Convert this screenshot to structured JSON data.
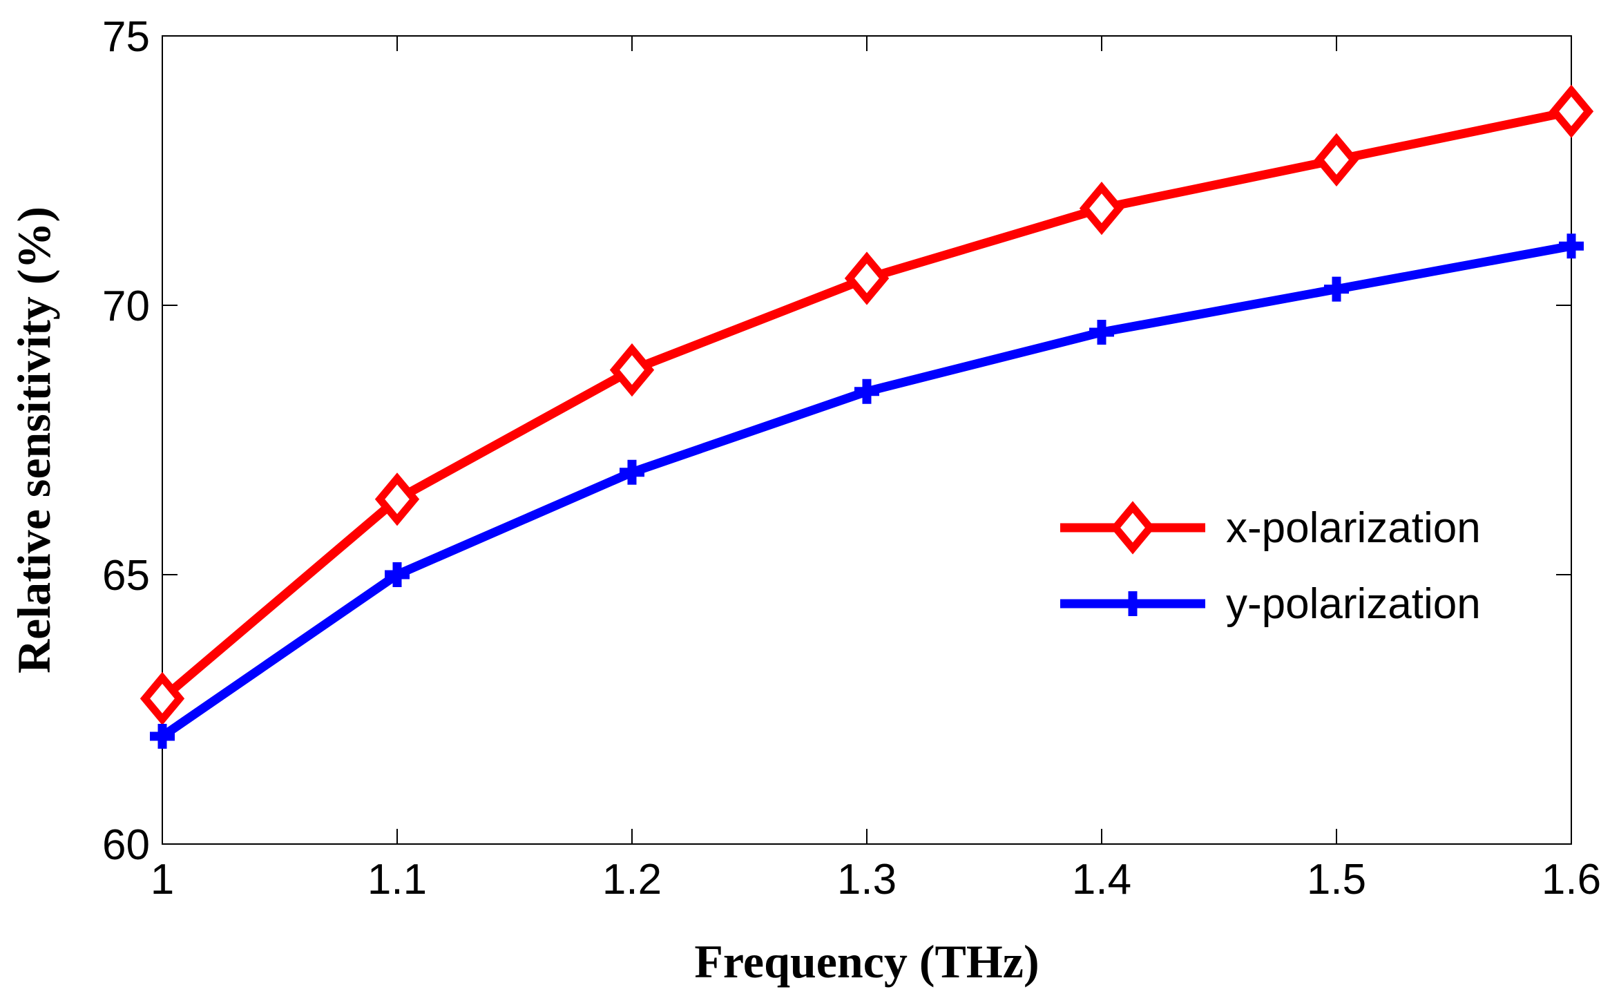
{
  "chart_data": {
    "type": "line",
    "title": "",
    "xlabel": "Frequency (THz)",
    "ylabel": "Relative sensitivity (%)",
    "x": [
      1.0,
      1.1,
      1.2,
      1.3,
      1.4,
      1.5,
      1.6
    ],
    "xlim": [
      1.0,
      1.6
    ],
    "ylim": [
      60,
      75
    ],
    "x_ticks": [
      "1",
      "1.1",
      "1.2",
      "1.3",
      "1.4",
      "1.5",
      "1.6"
    ],
    "y_ticks": [
      "60",
      "65",
      "70",
      "75"
    ],
    "grid": false,
    "legend_position": "center-right",
    "series": [
      {
        "name": "x-polarization",
        "color": "#ff0000",
        "marker": "diamond",
        "values": [
          62.7,
          66.4,
          68.8,
          70.5,
          71.8,
          72.7,
          73.6
        ]
      },
      {
        "name": "y-polarization",
        "color": "#0000ff",
        "marker": "cross",
        "values": [
          62.0,
          65.0,
          66.9,
          68.4,
          69.5,
          70.3,
          71.1
        ]
      }
    ]
  }
}
